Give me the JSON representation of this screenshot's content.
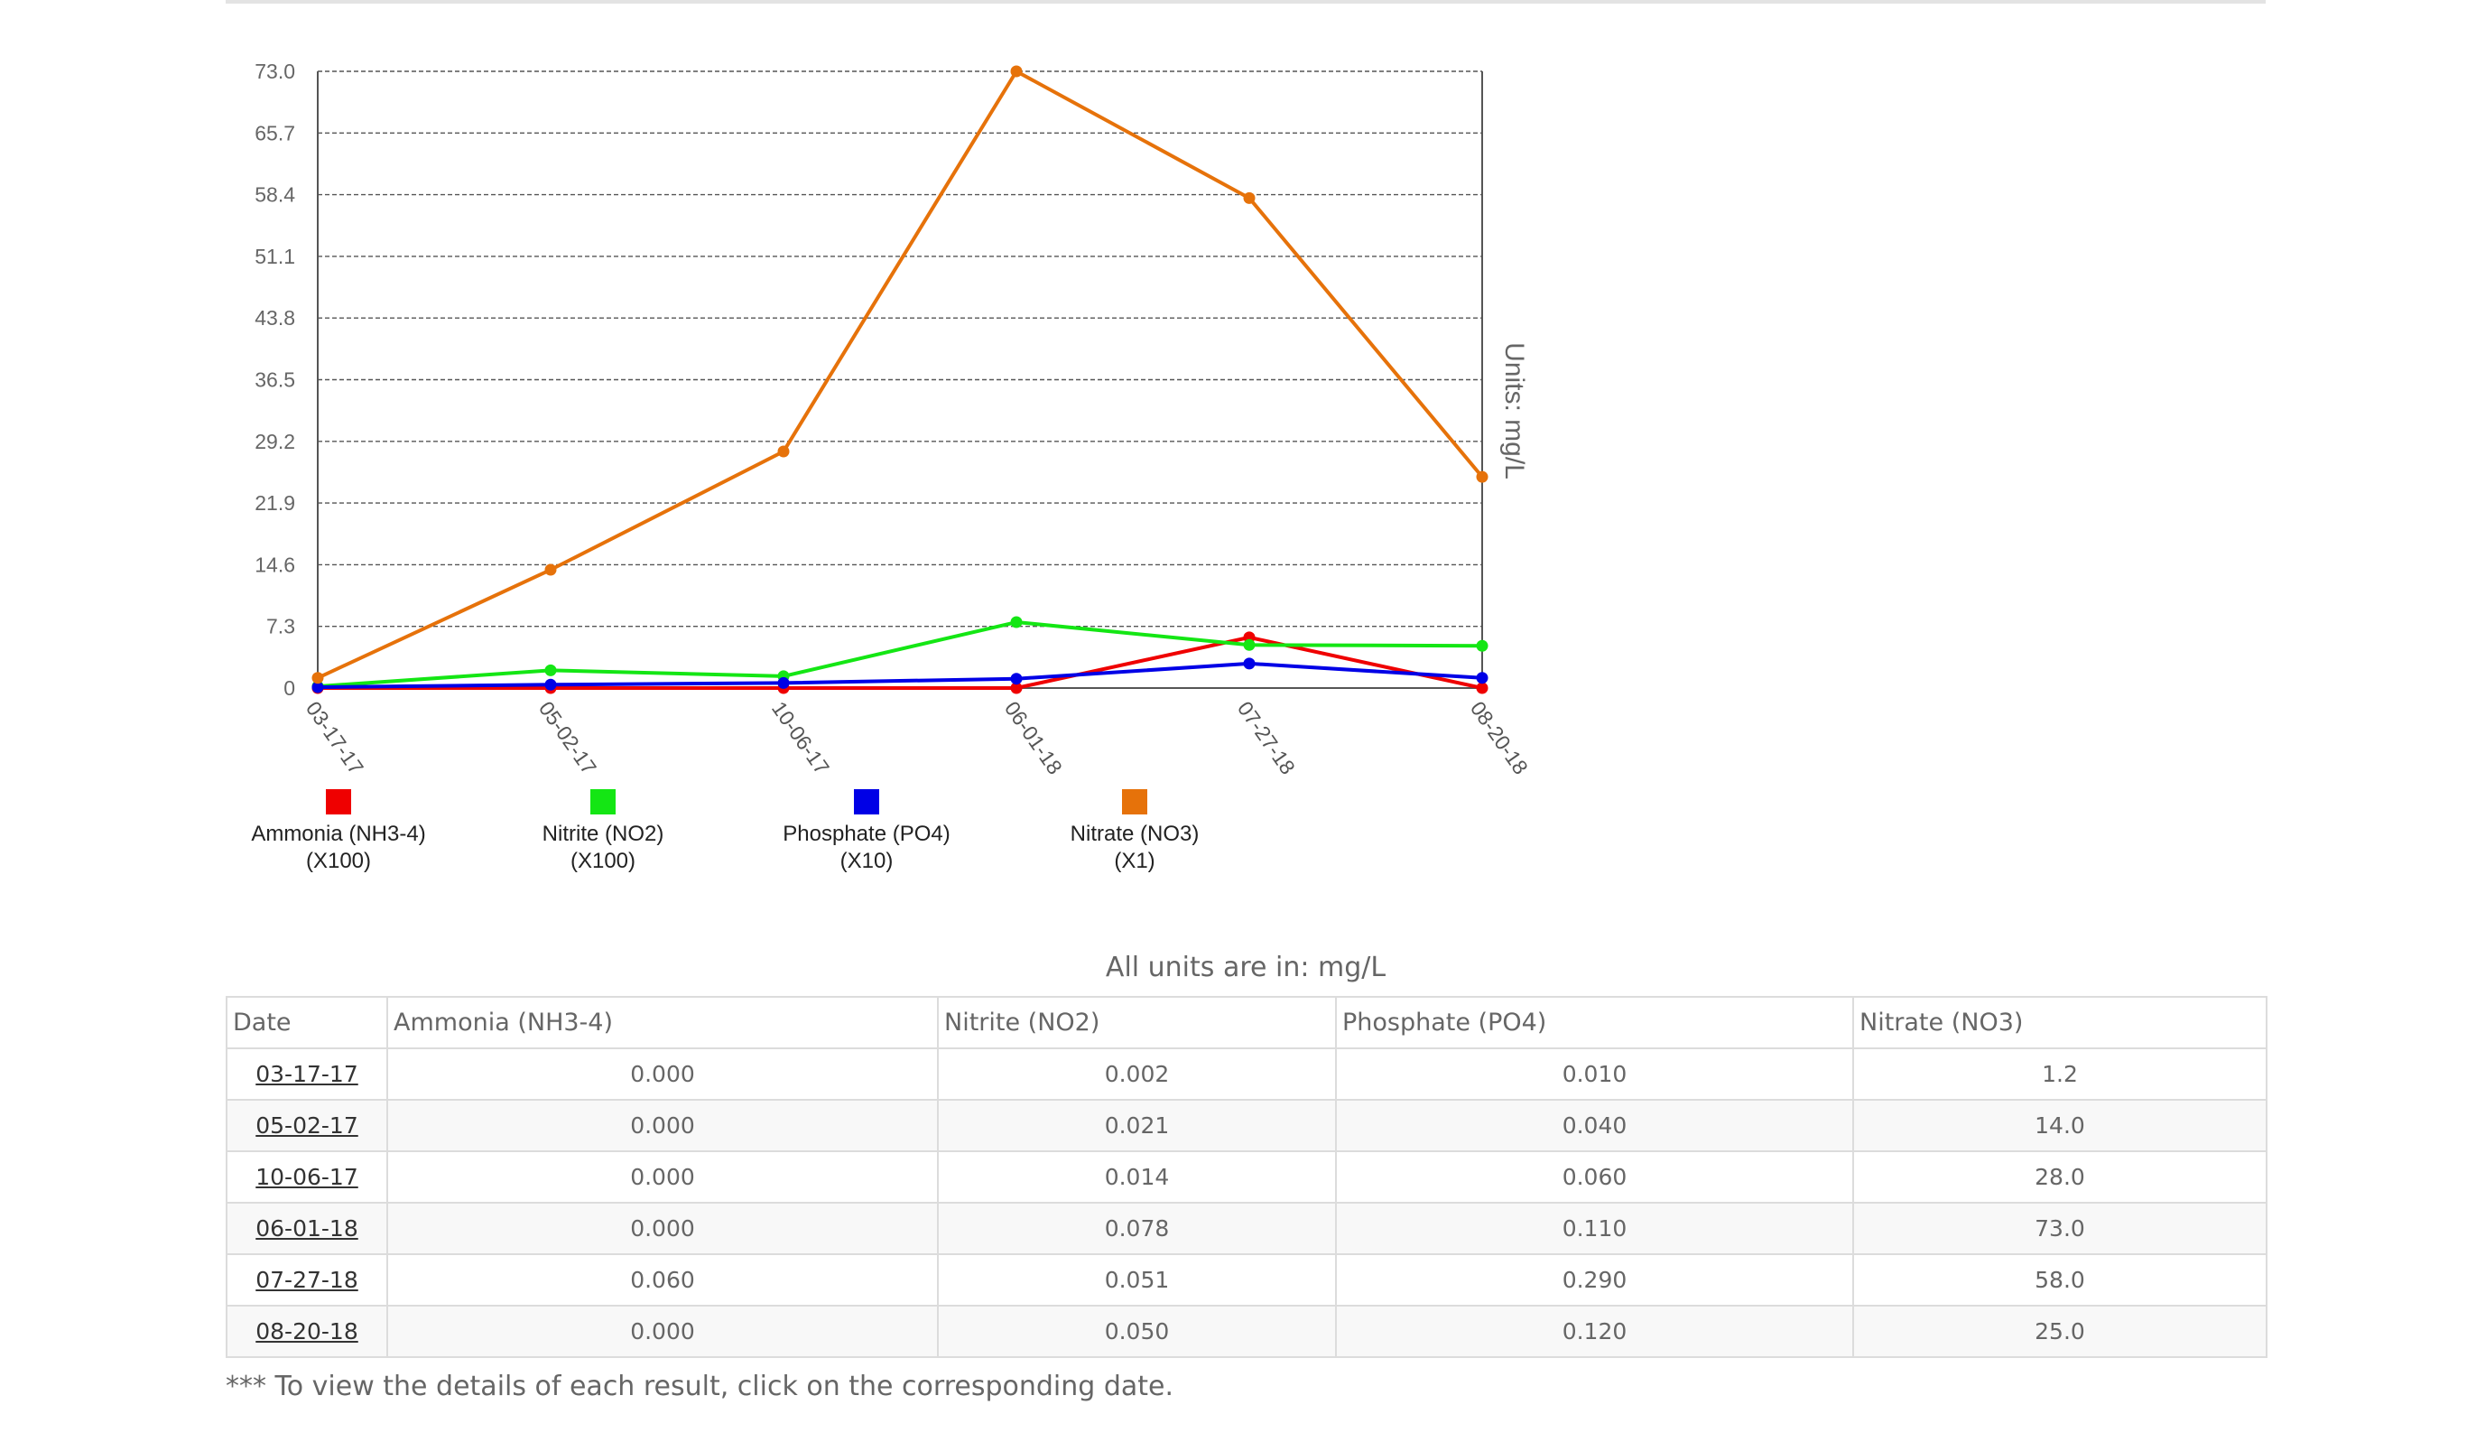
{
  "chart_data": {
    "type": "line",
    "x": [
      "03-17-17",
      "05-02-17",
      "10-06-17",
      "06-01-18",
      "07-27-18",
      "08-20-18"
    ],
    "y_ticks": [
      "0",
      "7.3",
      "14.6",
      "21.9",
      "29.2",
      "36.5",
      "43.8",
      "51.1",
      "58.4",
      "65.7",
      "73.0"
    ],
    "ylim": [
      0,
      73.0
    ],
    "ylabel": "Units: mg/L",
    "grid": true,
    "legend_position": "bottom",
    "series": [
      {
        "name": "Ammonia (NH3-4)",
        "multiplier": "(X100)",
        "color": "#ef0000",
        "values": [
          0,
          0,
          0,
          0,
          6,
          0
        ]
      },
      {
        "name": "Nitrite (NO2)",
        "multiplier": "(X100)",
        "color": "#14e614",
        "values": [
          0.2,
          2.1,
          1.4,
          7.8,
          5.1,
          5.0
        ]
      },
      {
        "name": "Phosphate (PO4)",
        "multiplier": "(X10)",
        "color": "#0000e6",
        "values": [
          0.1,
          0.4,
          0.6,
          1.1,
          2.9,
          1.2
        ]
      },
      {
        "name": "Nitrate (NO3)",
        "multiplier": "(X1)",
        "color": "#e6720a",
        "values": [
          1.2,
          14.0,
          28.0,
          73.0,
          58.0,
          25.0
        ]
      }
    ]
  },
  "table": {
    "caption": "All units are in: mg/L",
    "headers": [
      "Date",
      "Ammonia (NH3-4)",
      "Nitrite (NO2)",
      "Phosphate (PO4)",
      "Nitrate (NO3)"
    ],
    "rows": [
      {
        "date": "03-17-17",
        "ammonia": "0.000",
        "nitrite": "0.002",
        "phosphate": "0.010",
        "nitrate": "1.2"
      },
      {
        "date": "05-02-17",
        "ammonia": "0.000",
        "nitrite": "0.021",
        "phosphate": "0.040",
        "nitrate": "14.0"
      },
      {
        "date": "10-06-17",
        "ammonia": "0.000",
        "nitrite": "0.014",
        "phosphate": "0.060",
        "nitrate": "28.0"
      },
      {
        "date": "06-01-18",
        "ammonia": "0.000",
        "nitrite": "0.078",
        "phosphate": "0.110",
        "nitrate": "73.0"
      },
      {
        "date": "07-27-18",
        "ammonia": "0.060",
        "nitrite": "0.051",
        "phosphate": "0.290",
        "nitrate": "58.0"
      },
      {
        "date": "08-20-18",
        "ammonia": "0.000",
        "nitrite": "0.050",
        "phosphate": "0.120",
        "nitrate": "25.0"
      }
    ],
    "footnote": "*** To view the details of each result, click on the corresponding date."
  }
}
